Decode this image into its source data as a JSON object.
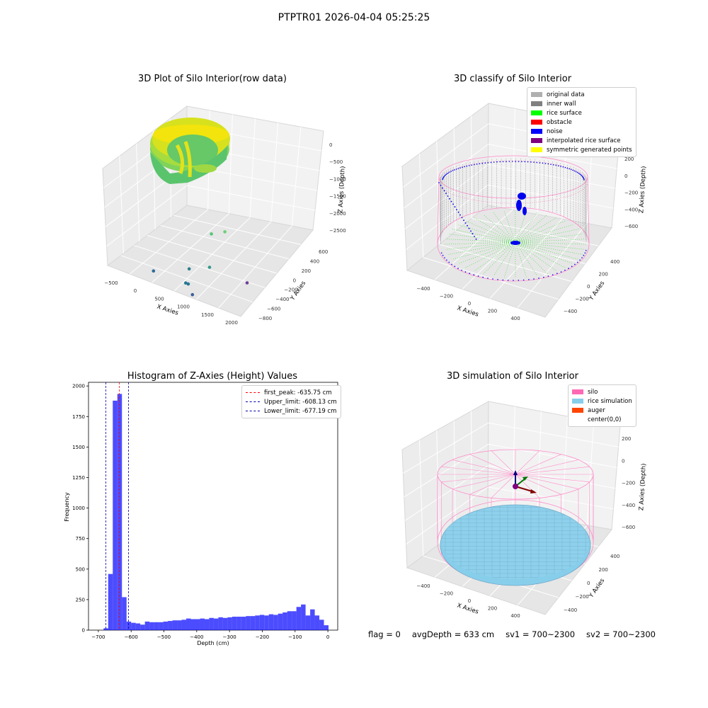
{
  "figure": {
    "suptitle": "PTPTR01 2026-04-04 05:25:25",
    "footer": {
      "flag": "flag = 0",
      "avg_depth": "avgDepth = 633 cm",
      "sv1": "sv1 = 700~2300",
      "sv2": "sv2 = 700~2300"
    }
  },
  "chart_data": [
    {
      "type": "scatter",
      "title": "3D Plot of Silo Interior(row data)",
      "xlabel": "X Axies",
      "ylabel": "Y Axies",
      "zlabel": "Z Axies (Depth)",
      "x_ticks": [
        "−500",
        "0",
        "500",
        "1000",
        "1500",
        "2000"
      ],
      "y_ticks": [
        "600",
        "400",
        "200",
        "0",
        "−200",
        "−400",
        "−600",
        "−800"
      ],
      "z_ticks": [
        "0",
        "−500",
        "−1000",
        "−1500",
        "−2000",
        "−2500"
      ],
      "outlier_points": [
        {
          "x": 1800,
          "y": 0,
          "z": -600,
          "color": "#6ccf78"
        },
        {
          "x": 1300,
          "y": 200,
          "z": -1200,
          "color": "#55c47a"
        },
        {
          "x": 1500,
          "y": 0,
          "z": -1900,
          "color": "#2f9c8a"
        },
        {
          "x": 1100,
          "y": 0,
          "z": -2200,
          "color": "#2b7f8e"
        },
        {
          "x": 1150,
          "y": -100,
          "z": -2500,
          "color": "#237793"
        },
        {
          "x": 1200,
          "y": -100,
          "z": -2500,
          "color": "#237793"
        },
        {
          "x": 1400,
          "y": -200,
          "z": -2600,
          "color": "#3b5f9c"
        },
        {
          "x": 400,
          "y": 0,
          "z": -2700,
          "color": "#2d6c98"
        },
        {
          "x": 2000,
          "y": 200,
          "z": -2300,
          "color": "#6b3f94"
        }
      ]
    },
    {
      "type": "scatter",
      "title": "3D classify of Silo Interior",
      "xlabel": "X Axies",
      "ylabel": "Y Axies",
      "zlabel": "Z Axies (Depth)",
      "x_ticks": [
        "−400",
        "−200",
        "0",
        "200",
        "400"
      ],
      "y_ticks": [
        "400",
        "200",
        "0",
        "−200",
        "−400"
      ],
      "z_ticks": [
        "200",
        "0",
        "−200",
        "−400",
        "−600"
      ],
      "legend": [
        {
          "label": "original data",
          "color": "#b0b0b0"
        },
        {
          "label": "inner wall",
          "color": "#808080"
        },
        {
          "label": "rice surface",
          "color": "#00ff00"
        },
        {
          "label": "obstacle",
          "color": "#ff0000"
        },
        {
          "label": "noise",
          "color": "#0000ff"
        },
        {
          "label": "interpolated rice surface",
          "color": "#800080"
        },
        {
          "label": "symmetric generated points",
          "color": "#ffff00"
        }
      ]
    },
    {
      "type": "bar",
      "title": "Histogram of Z-Axies (Height) Values",
      "xlabel": "Depth (cm)",
      "ylabel": "Frequency",
      "xlim": [
        -730,
        30
      ],
      "ylim": [
        0,
        2030
      ],
      "x_ticks": [
        -700,
        -600,
        -500,
        -400,
        -300,
        -200,
        -100,
        0
      ],
      "x_tick_labels": [
        "−700",
        "−600",
        "−500",
        "−400",
        "−300",
        "−200",
        "−100",
        "0"
      ],
      "y_ticks": [
        0,
        250,
        500,
        750,
        1000,
        1250,
        1500,
        1750,
        2000
      ],
      "bin_width": 14,
      "bin_starts": [
        -684,
        -670,
        -656,
        -642,
        -628,
        -614,
        -600,
        -586,
        -572,
        -558,
        -544,
        -530,
        -516,
        -502,
        -488,
        -474,
        -460,
        -446,
        -432,
        -418,
        -404,
        -390,
        -376,
        -362,
        -348,
        -334,
        -320,
        -306,
        -292,
        -278,
        -264,
        -250,
        -236,
        -222,
        -208,
        -194,
        -180,
        -166,
        -152,
        -138,
        -124,
        -110,
        -96,
        -82,
        -68,
        -54,
        -40,
        -26,
        -12
      ],
      "values": [
        15,
        460,
        1880,
        1935,
        270,
        70,
        60,
        55,
        45,
        70,
        65,
        65,
        65,
        70,
        75,
        80,
        80,
        85,
        95,
        90,
        90,
        95,
        90,
        100,
        95,
        105,
        100,
        105,
        110,
        110,
        110,
        115,
        115,
        120,
        125,
        120,
        130,
        125,
        135,
        145,
        155,
        155,
        190,
        210,
        120,
        170,
        120,
        85,
        40
      ],
      "color": "#0000ff",
      "vlines": [
        {
          "label": "first_peak: -635.75 cm",
          "x": -635.75,
          "color": "#ff0000"
        },
        {
          "label": "Upper_limit: -608.13 cm",
          "x": -608.13,
          "color": "#0000aa"
        },
        {
          "label": "Lower_limit: -677.19 cm",
          "x": -677.19,
          "color": "#0000aa"
        }
      ]
    },
    {
      "type": "scatter",
      "title": "3D simulation of Silo Interior",
      "xlabel": "X Axies",
      "ylabel": "Y Axies",
      "zlabel": "Z Axies (Depth)",
      "x_ticks": [
        "−400",
        "−200",
        "0",
        "200",
        "400"
      ],
      "y_ticks": [
        "400",
        "200",
        "0",
        "−200",
        "−400"
      ],
      "z_ticks": [
        "200",
        "0",
        "−200",
        "−400",
        "−600"
      ],
      "legend": [
        {
          "label": "silo",
          "color": "#ff69b4"
        },
        {
          "label": "rice simulation",
          "color": "#87ceeb"
        },
        {
          "label": "auger",
          "color": "#ff4500"
        },
        {
          "label": "center(0,0)",
          "color": ""
        }
      ]
    }
  ]
}
